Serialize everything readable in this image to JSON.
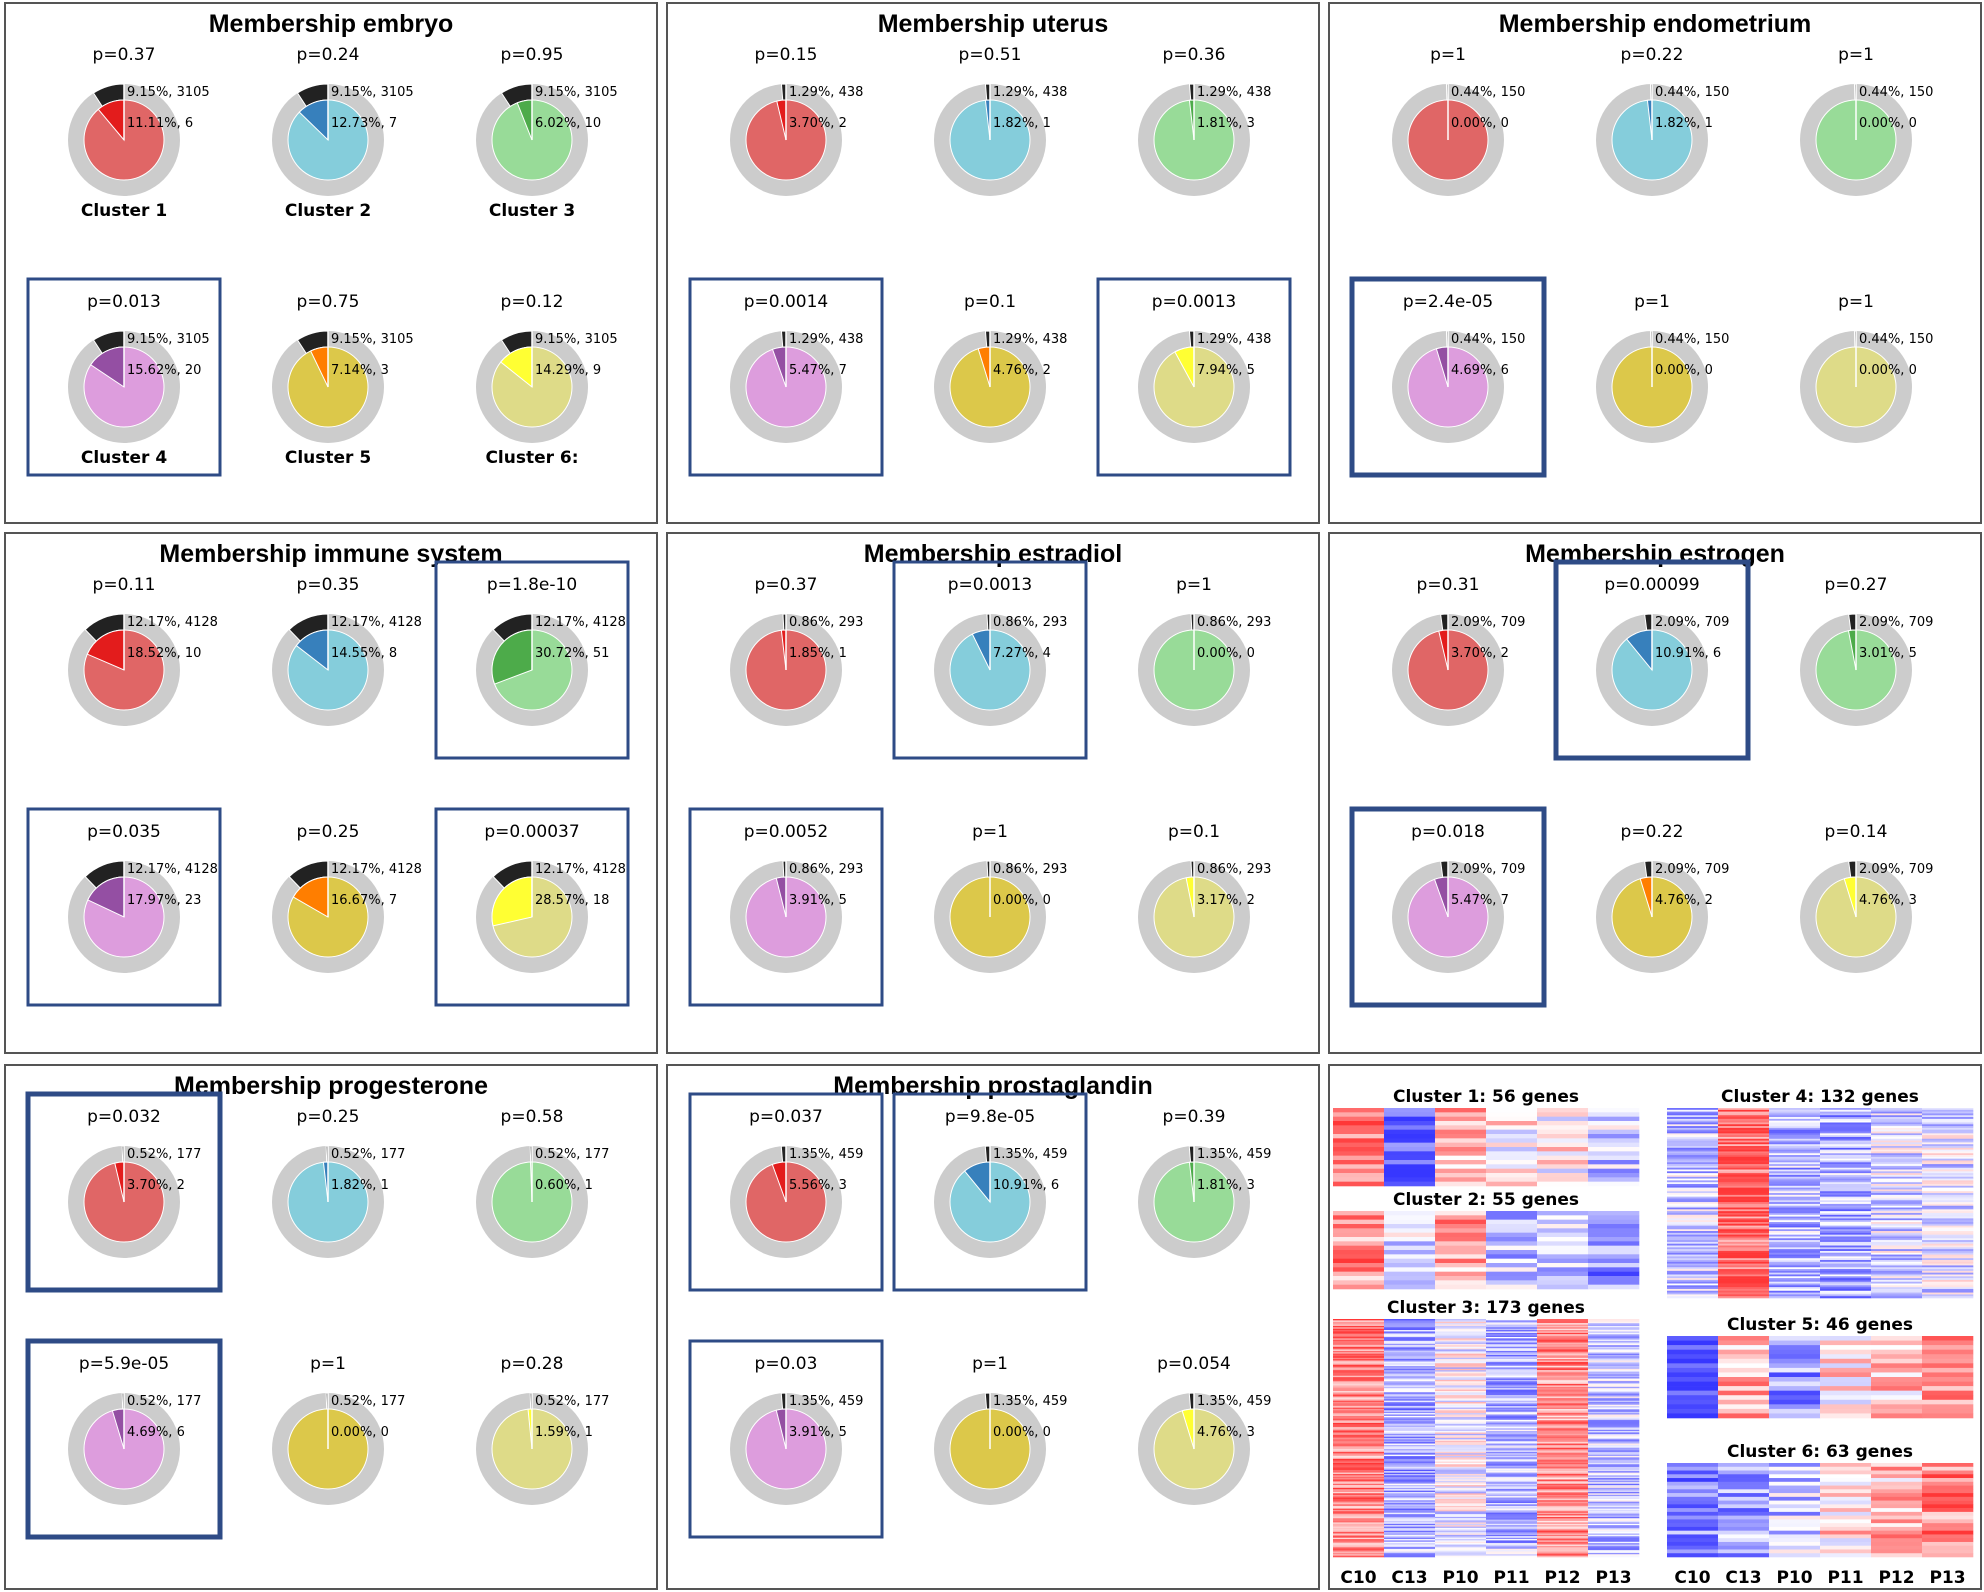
{
  "colors": {
    "ring": "#cccccc",
    "black": "#222222",
    "cluster_light": [
      "#e06666",
      "#85cddb",
      "#98db98",
      "#dd9ddd",
      "#dcc84a",
      "#dedb88"
    ],
    "cluster_dark": [
      "#e31c1c",
      "#3780bc",
      "#4dab4a",
      "#944fa3",
      "#ff7e00",
      "#ffff33"
    ],
    "box": "#2e4b86"
  },
  "cluster_labels": [
    "Cluster 1",
    "Cluster 2",
    "Cluster 3",
    "Cluster 4",
    "Cluster 5",
    "Cluster 6:"
  ],
  "chart_data": [
    {
      "type": "pie",
      "title": "Membership embryo",
      "background": {
        "percent": 9.15,
        "count": 3105
      },
      "clusters": [
        {
          "cluster": 1,
          "p": "p=0.37",
          "percent": 11.11,
          "count": 6,
          "highlighted": false
        },
        {
          "cluster": 2,
          "p": "p=0.24",
          "percent": 12.73,
          "count": 7,
          "highlighted": false
        },
        {
          "cluster": 3,
          "p": "p=0.95",
          "percent": 6.02,
          "count": 10,
          "highlighted": false
        },
        {
          "cluster": 4,
          "p": "p=0.013",
          "percent": 15.62,
          "count": 20,
          "highlighted": true
        },
        {
          "cluster": 5,
          "p": "p=0.75",
          "percent": 7.14,
          "count": 3,
          "highlighted": false
        },
        {
          "cluster": 6,
          "p": "p=0.12",
          "percent": 14.29,
          "count": 9,
          "highlighted": false
        }
      ]
    },
    {
      "type": "pie",
      "title": "Membership uterus",
      "background": {
        "percent": 1.29,
        "count": 438
      },
      "clusters": [
        {
          "cluster": 1,
          "p": "p=0.15",
          "percent": 3.7,
          "count": 2,
          "highlighted": false
        },
        {
          "cluster": 2,
          "p": "p=0.51",
          "percent": 1.82,
          "count": 1,
          "highlighted": false
        },
        {
          "cluster": 3,
          "p": "p=0.36",
          "percent": 1.81,
          "count": 3,
          "highlighted": false
        },
        {
          "cluster": 4,
          "p": "p=0.0014",
          "percent": 5.47,
          "count": 7,
          "highlighted": true
        },
        {
          "cluster": 5,
          "p": "p=0.1",
          "percent": 4.76,
          "count": 2,
          "highlighted": false
        },
        {
          "cluster": 6,
          "p": "p=0.0013",
          "percent": 7.94,
          "count": 5,
          "highlighted": true
        }
      ]
    },
    {
      "type": "pie",
      "title": "Membership endometrium",
      "background": {
        "percent": 0.44,
        "count": 150
      },
      "clusters": [
        {
          "cluster": 1,
          "p": "p=1",
          "percent": 0.0,
          "count": 0,
          "highlighted": false
        },
        {
          "cluster": 2,
          "p": "p=0.22",
          "percent": 1.82,
          "count": 1,
          "highlighted": false
        },
        {
          "cluster": 3,
          "p": "p=1",
          "percent": 0.0,
          "count": 0,
          "highlighted": false
        },
        {
          "cluster": 4,
          "p": "p=2.4e-05",
          "percent": 4.69,
          "count": 6,
          "highlighted": true
        },
        {
          "cluster": 5,
          "p": "p=1",
          "percent": 0.0,
          "count": 0,
          "highlighted": false
        },
        {
          "cluster": 6,
          "p": "p=1",
          "percent": 0.0,
          "count": 0,
          "highlighted": false
        }
      ]
    },
    {
      "type": "pie",
      "title": "Membership immune system",
      "background": {
        "percent": 12.17,
        "count": 4128
      },
      "clusters": [
        {
          "cluster": 1,
          "p": "p=0.11",
          "percent": 18.52,
          "count": 10,
          "highlighted": false
        },
        {
          "cluster": 2,
          "p": "p=0.35",
          "percent": 14.55,
          "count": 8,
          "highlighted": false
        },
        {
          "cluster": 3,
          "p": "p=1.8e-10",
          "percent": 30.72,
          "count": 51,
          "highlighted": true
        },
        {
          "cluster": 4,
          "p": "p=0.035",
          "percent": 17.97,
          "count": 23,
          "highlighted": true
        },
        {
          "cluster": 5,
          "p": "p=0.25",
          "percent": 16.67,
          "count": 7,
          "highlighted": false
        },
        {
          "cluster": 6,
          "p": "p=0.00037",
          "percent": 28.57,
          "count": 18,
          "highlighted": true
        }
      ]
    },
    {
      "type": "pie",
      "title": "Membership estradiol",
      "background": {
        "percent": 0.86,
        "count": 293
      },
      "clusters": [
        {
          "cluster": 1,
          "p": "p=0.37",
          "percent": 1.85,
          "count": 1,
          "highlighted": false
        },
        {
          "cluster": 2,
          "p": "p=0.0013",
          "percent": 7.27,
          "count": 4,
          "highlighted": true
        },
        {
          "cluster": 3,
          "p": "p=1",
          "percent": 0.0,
          "count": 0,
          "highlighted": false
        },
        {
          "cluster": 4,
          "p": "p=0.0052",
          "percent": 3.91,
          "count": 5,
          "highlighted": true
        },
        {
          "cluster": 5,
          "p": "p=1",
          "percent": 0.0,
          "count": 0,
          "highlighted": false
        },
        {
          "cluster": 6,
          "p": "p=0.1",
          "percent": 3.17,
          "count": 2,
          "highlighted": false
        }
      ]
    },
    {
      "type": "pie",
      "title": "Membership estrogen",
      "background": {
        "percent": 2.09,
        "count": 709
      },
      "clusters": [
        {
          "cluster": 1,
          "p": "p=0.31",
          "percent": 3.7,
          "count": 2,
          "highlighted": false
        },
        {
          "cluster": 2,
          "p": "p=0.00099",
          "percent": 10.91,
          "count": 6,
          "highlighted": true
        },
        {
          "cluster": 3,
          "p": "p=0.27",
          "percent": 3.01,
          "count": 5,
          "highlighted": false
        },
        {
          "cluster": 4,
          "p": "p=0.018",
          "percent": 5.47,
          "count": 7,
          "highlighted": true
        },
        {
          "cluster": 5,
          "p": "p=0.22",
          "percent": 4.76,
          "count": 2,
          "highlighted": false
        },
        {
          "cluster": 6,
          "p": "p=0.14",
          "percent": 4.76,
          "count": 3,
          "highlighted": false
        }
      ]
    },
    {
      "type": "pie",
      "title": "Membership progesterone",
      "background": {
        "percent": 0.52,
        "count": 177
      },
      "clusters": [
        {
          "cluster": 1,
          "p": "p=0.032",
          "percent": 3.7,
          "count": 2,
          "highlighted": true
        },
        {
          "cluster": 2,
          "p": "p=0.25",
          "percent": 1.82,
          "count": 1,
          "highlighted": false
        },
        {
          "cluster": 3,
          "p": "p=0.58",
          "percent": 0.6,
          "count": 1,
          "highlighted": false
        },
        {
          "cluster": 4,
          "p": "p=5.9e-05",
          "percent": 4.69,
          "count": 6,
          "highlighted": true
        },
        {
          "cluster": 5,
          "p": "p=1",
          "percent": 0.0,
          "count": 0,
          "highlighted": false
        },
        {
          "cluster": 6,
          "p": "p=0.28",
          "percent": 1.59,
          "count": 1,
          "highlighted": false
        }
      ]
    },
    {
      "type": "pie",
      "title": "Membership prostaglandin",
      "background": {
        "percent": 1.35,
        "count": 459
      },
      "clusters": [
        {
          "cluster": 1,
          "p": "p=0.037",
          "percent": 5.56,
          "count": 3,
          "highlighted": true
        },
        {
          "cluster": 2,
          "p": "p=9.8e-05",
          "percent": 10.91,
          "count": 6,
          "highlighted": true
        },
        {
          "cluster": 3,
          "p": "p=0.39",
          "percent": 1.81,
          "count": 3,
          "highlighted": false
        },
        {
          "cluster": 4,
          "p": "p=0.03",
          "percent": 3.91,
          "count": 5,
          "highlighted": true
        },
        {
          "cluster": 5,
          "p": "p=1",
          "percent": 0.0,
          "count": 0,
          "highlighted": false
        },
        {
          "cluster": 6,
          "p": "p=0.054",
          "percent": 4.76,
          "count": 3,
          "highlighted": false
        }
      ]
    },
    {
      "type": "heatmap",
      "columns": [
        "C10",
        "C13",
        "P10",
        "P11",
        "P12",
        "P13"
      ],
      "clusters": [
        {
          "title": "Cluster 1: 56 genes",
          "genes": 56,
          "pattern": [
            0.6,
            -0.85,
            0.35,
            0.1,
            0.1,
            -0.3
          ]
        },
        {
          "title": "Cluster 2: 55 genes",
          "genes": 55,
          "pattern": [
            0.55,
            -0.2,
            0.45,
            -0.35,
            -0.2,
            -0.55
          ]
        },
        {
          "title": "Cluster 3: 173 genes",
          "genes": 173,
          "pattern": [
            0.6,
            -0.4,
            -0.05,
            -0.35,
            0.55,
            -0.3
          ]
        },
        {
          "title": "Cluster 4: 132 genes",
          "genes": 132,
          "pattern": [
            -0.3,
            0.75,
            -0.35,
            -0.4,
            -0.2,
            -0.15
          ]
        },
        {
          "title": "Cluster 5: 46 genes",
          "genes": 46,
          "pattern": [
            -0.85,
            0.35,
            -0.5,
            0.15,
            0.3,
            0.5
          ]
        },
        {
          "title": "Cluster 6: 63 genes",
          "genes": 63,
          "pattern": [
            -0.55,
            -0.45,
            -0.3,
            0.2,
            0.35,
            0.6
          ]
        }
      ]
    }
  ]
}
